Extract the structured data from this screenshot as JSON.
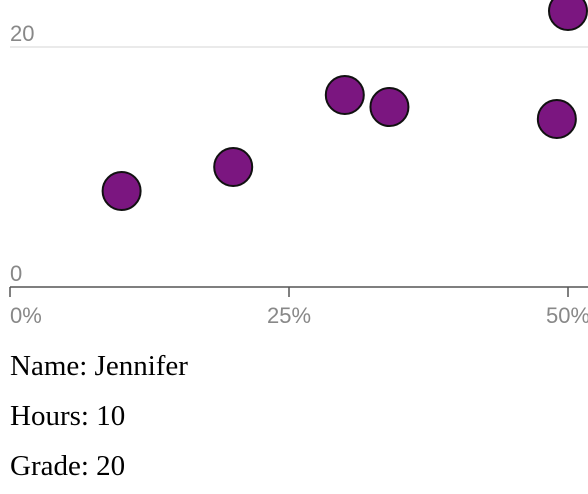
{
  "chart_data": {
    "type": "scatter",
    "x": [
      10,
      20,
      30,
      34,
      49,
      50
    ],
    "values": [
      8,
      10,
      16,
      15,
      14,
      23
    ],
    "color": "#7b1680",
    "xlim": [
      0,
      50
    ],
    "ylim": [
      0,
      24
    ],
    "xticks": [
      {
        "value": 0,
        "label": "0%"
      },
      {
        "value": 25,
        "label": "25%"
      },
      {
        "value": 50,
        "label": "50%"
      }
    ],
    "yticks": [
      0,
      20
    ],
    "grid": true
  },
  "details": [
    "Name: Jennifer",
    "Hours: 10",
    "Grade: 20"
  ]
}
